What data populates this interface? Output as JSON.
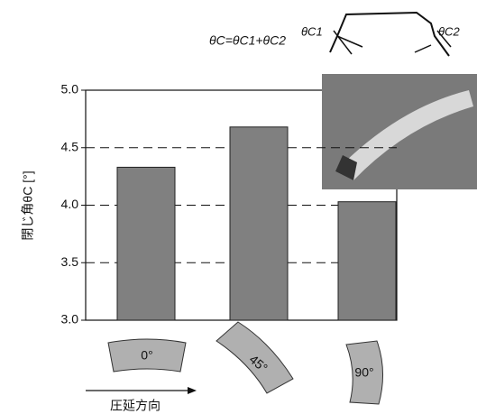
{
  "chart_data": {
    "type": "bar",
    "formula": "θC=θC1+θC2",
    "diagram_labels": [
      "θC1",
      "θC2"
    ],
    "y_label": "閉じ角θC [°]",
    "x_label": "圧延方向",
    "categories": [
      "0°",
      "45°",
      "90°"
    ],
    "values": [
      4.33,
      4.68,
      4.03
    ],
    "color": "#808080",
    "ylim": [
      3,
      5
    ],
    "yticks": [
      {
        "value": 3,
        "label": "3.0"
      },
      {
        "value": 3.5,
        "label": "3.5"
      },
      {
        "value": 4,
        "label": "4.0"
      },
      {
        "value": 4.5,
        "label": "4.5"
      },
      {
        "value": 5,
        "label": "5.0"
      }
    ],
    "grid": true
  }
}
